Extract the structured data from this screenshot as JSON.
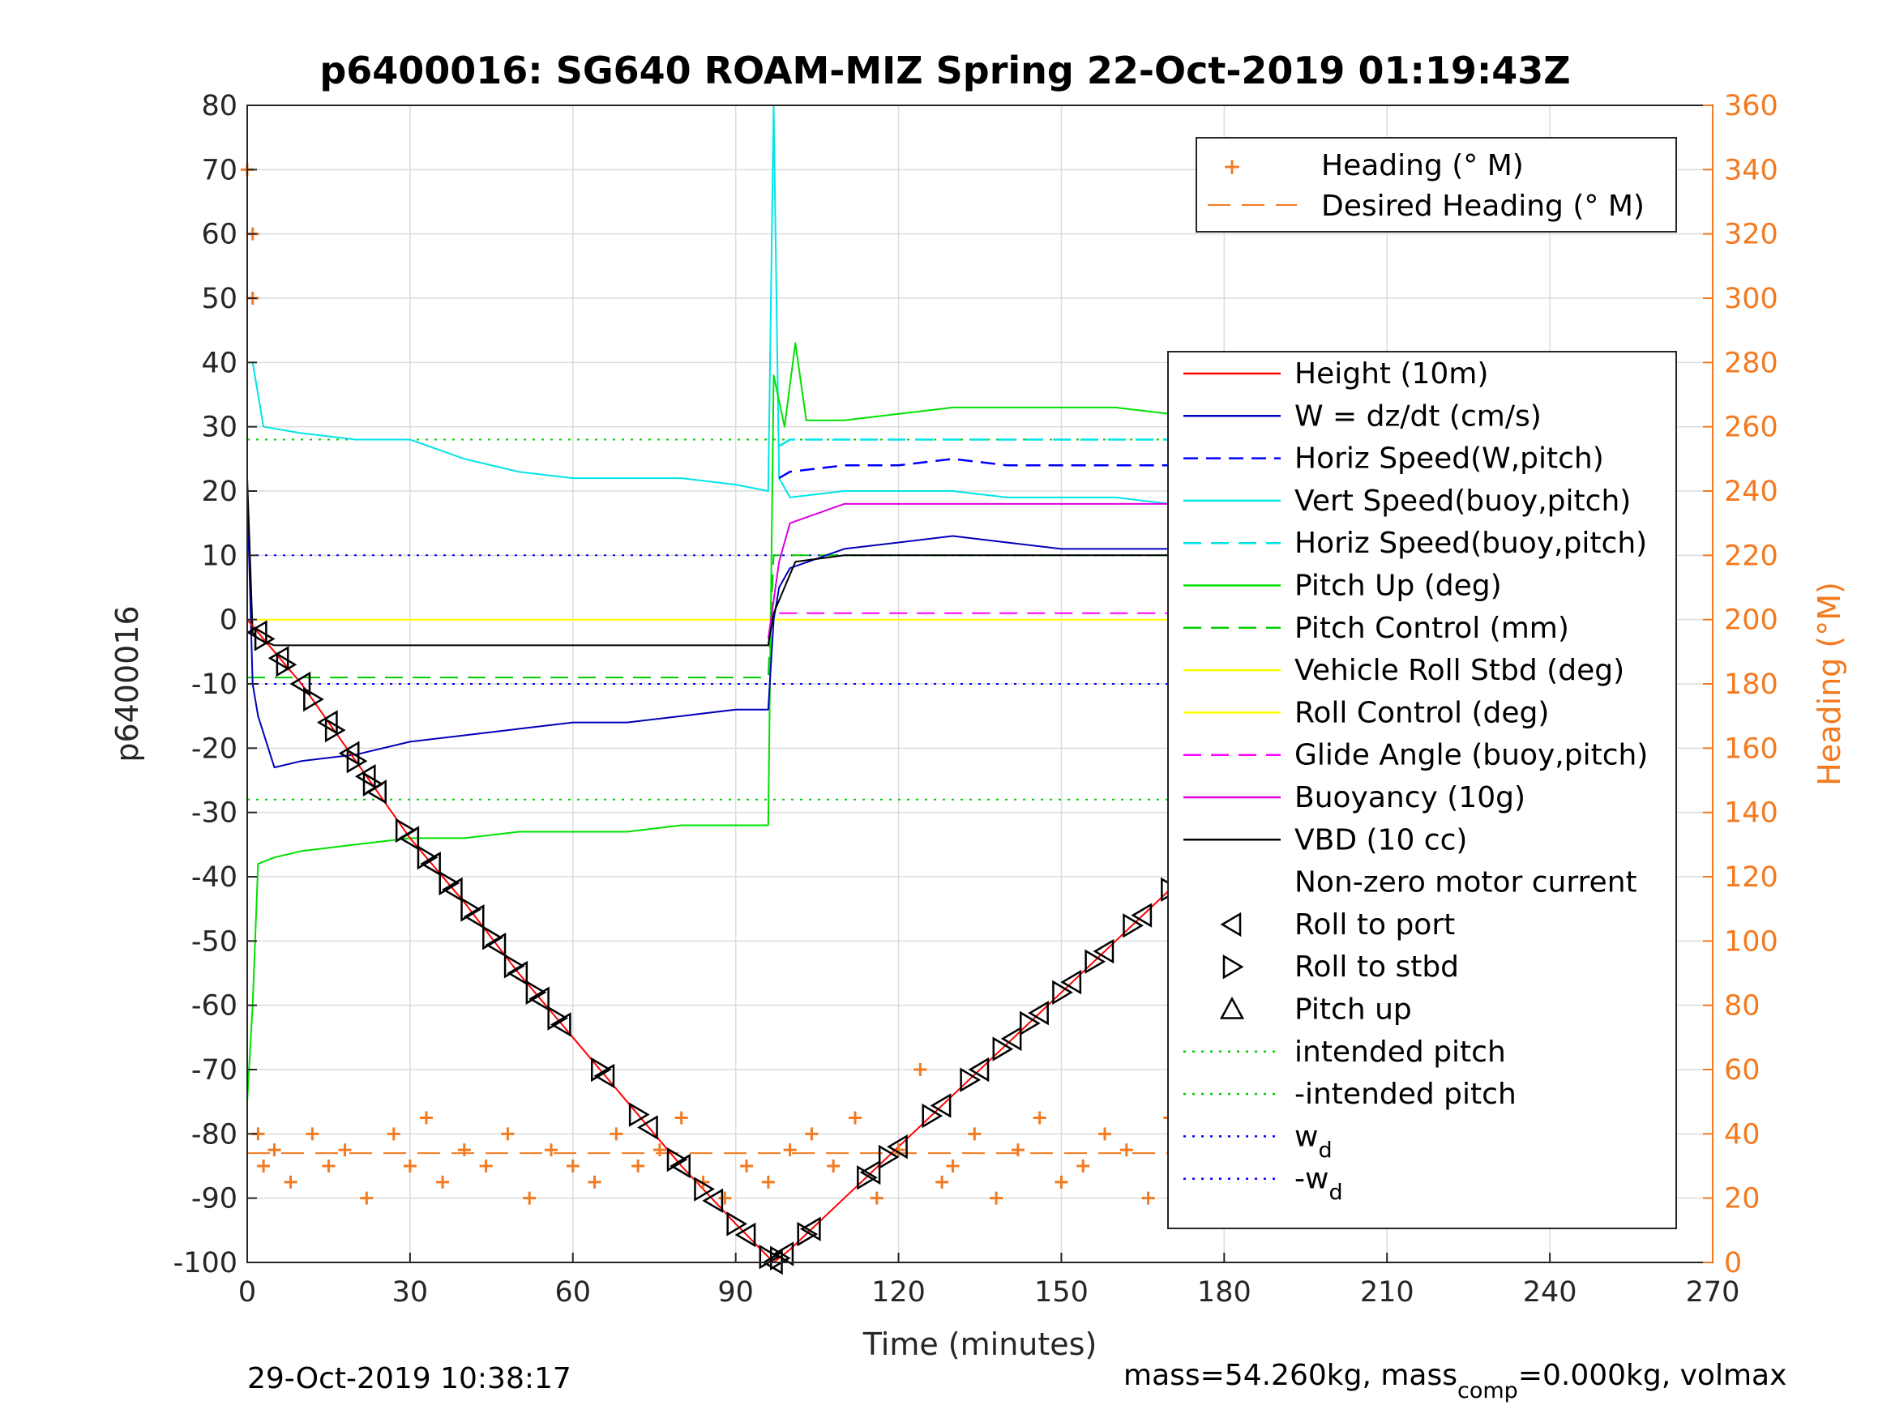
{
  "chart_data": {
    "type": "line",
    "title": "p6400016: SG640 ROAM-MIZ Spring 22-Oct-2019 01:19:43Z",
    "xlabel": "Time (minutes)",
    "ylabel": "p6400016",
    "y2label": "Heading (°M)",
    "xlim": [
      0,
      270
    ],
    "ylim": [
      -100,
      80
    ],
    "y2lim": [
      0,
      360
    ],
    "xticks": [
      "0",
      "30",
      "60",
      "90",
      "120",
      "150",
      "180",
      "210",
      "240",
      "270"
    ],
    "yticks": [
      "80",
      "70",
      "60",
      "50",
      "40",
      "30",
      "20",
      "10",
      "0",
      "-10",
      "-20",
      "-30",
      "-40",
      "-50",
      "-60",
      "-70",
      "-80",
      "-90",
      "-100"
    ],
    "y2ticks": [
      "360",
      "340",
      "320",
      "300",
      "280",
      "260",
      "240",
      "220",
      "200",
      "180",
      "160",
      "140",
      "120",
      "100",
      "80",
      "60",
      "40",
      "20",
      "0"
    ],
    "grid": true,
    "footer_left": "29-Oct-2019 10:38:17",
    "footer_right_parts": [
      "mass=54.260kg, mass",
      "comp",
      "=0.000kg, volmax"
    ],
    "legend_top": {
      "placement": "top-right",
      "entries": [
        "Heading (° M)",
        "Desired Heading (° M)"
      ]
    },
    "legend_main": {
      "placement": "right",
      "entries": [
        "Height (10m)",
        "W = dz/dt (cm/s)",
        "Horiz Speed(W,pitch)",
        "Vert Speed(buoy,pitch)",
        "Horiz Speed(buoy,pitch)",
        "Pitch Up (deg)",
        "Pitch Control (mm)",
        "Vehicle Roll Stbd (deg)",
        "Roll Control (deg)",
        "Glide Angle (buoy,pitch)",
        "Buoyancy (10g)",
        "VBD (10 cc)",
        "Non-zero motor current",
        "Roll to port",
        "Roll to stbd",
        "Pitch up",
        "intended pitch",
        "-intended pitch",
        "w",
        "-w"
      ],
      "sub_d": "d"
    },
    "colors": {
      "height": "#ff0000",
      "w": "#0000bb",
      "horiz_w": "#0000ff",
      "vert_buoy": "#00e5e5",
      "pitch_up": "#00e000",
      "roll": "#ffff00",
      "glide": "#ff00ff",
      "buoyancy": "#dd00dd",
      "vbd": "#000000",
      "heading": "#f47a20",
      "intended": "#00cc00",
      "wd": "#0000ff"
    },
    "series": [
      {
        "name": "Height (10m)",
        "x": [
          0,
          10,
          20,
          30,
          40,
          50,
          60,
          70,
          80,
          90,
          97,
          100,
          110,
          120,
          130,
          140,
          150,
          160,
          170,
          180,
          190,
          200,
          210,
          220,
          230,
          240,
          247
        ],
        "y": [
          0,
          -10,
          -22,
          -34,
          -44,
          -55,
          -65,
          -75,
          -85,
          -94,
          -100,
          -98,
          -90,
          -82,
          -74,
          -66,
          -58,
          -50,
          -42,
          -34,
          -26,
          -18,
          -12,
          -6,
          -3,
          -1,
          0
        ]
      },
      {
        "name": "W = dz/dt (cm/s)",
        "x": [
          0,
          1,
          2,
          5,
          10,
          20,
          30,
          40,
          50,
          60,
          70,
          80,
          90,
          96,
          97,
          98,
          100,
          110,
          120,
          130,
          140,
          150,
          160,
          170,
          180,
          190,
          200,
          210,
          220,
          230,
          240,
          246
        ],
        "y": [
          20,
          -10,
          -15,
          -23,
          -22,
          -21,
          -19,
          -18,
          -17,
          -16,
          -16,
          -15,
          -14,
          -14,
          0,
          5,
          8,
          11,
          12,
          13,
          12,
          11,
          11,
          11,
          10,
          11,
          11,
          12,
          12,
          12,
          13,
          12
        ]
      },
      {
        "name": "Horiz Speed(W,pitch)",
        "x": [
          98,
          100,
          110,
          120,
          130,
          140,
          150,
          160,
          170,
          180,
          190,
          200,
          210,
          220,
          230,
          240,
          246
        ],
        "y": [
          22,
          23,
          24,
          24,
          25,
          24,
          24,
          24,
          24,
          23,
          23,
          23,
          22,
          22,
          22,
          23,
          22
        ]
      },
      {
        "name": "Vert Speed(buoy,pitch)",
        "x": [
          1,
          3,
          10,
          20,
          30,
          40,
          50,
          60,
          70,
          80,
          90,
          96,
          97,
          98,
          100,
          110,
          120,
          130,
          140,
          150,
          160,
          170,
          180,
          190,
          200,
          210,
          220,
          230,
          240,
          246
        ],
        "y": [
          40,
          30,
          29,
          28,
          28,
          25,
          23,
          22,
          22,
          22,
          21,
          20,
          80,
          22,
          19,
          20,
          20,
          20,
          19,
          19,
          19,
          18,
          18,
          17,
          17,
          16,
          16,
          16,
          15,
          15
        ]
      },
      {
        "name": "Horiz Speed(buoy,pitch)",
        "x": [
          98,
          100,
          120,
          140,
          160,
          180,
          200,
          220,
          240,
          246
        ],
        "y": [
          27,
          28,
          28,
          28,
          28,
          28,
          28,
          28,
          28,
          28
        ]
      },
      {
        "name": "Pitch Up (deg)",
        "x": [
          0,
          1,
          2,
          5,
          10,
          20,
          30,
          40,
          50,
          60,
          70,
          80,
          90,
          96,
          97,
          99,
          101,
          103,
          110,
          120,
          130,
          140,
          150,
          160,
          170,
          180,
          190,
          200,
          210,
          220,
          230,
          240,
          246
        ],
        "y": [
          -75,
          -60,
          -38,
          -37,
          -36,
          -35,
          -34,
          -34,
          -33,
          -33,
          -33,
          -32,
          -32,
          -32,
          38,
          30,
          43,
          31,
          31,
          32,
          33,
          33,
          33,
          33,
          32,
          32,
          32,
          32,
          32,
          31,
          32,
          32,
          31
        ]
      },
      {
        "name": "Pitch Control (mm)",
        "x": [
          0,
          96,
          97,
          246
        ],
        "y": [
          -9,
          -9,
          10,
          10
        ]
      },
      {
        "name": "Roll Control (deg)",
        "x": [
          0,
          20,
          40,
          60,
          80,
          96,
          98,
          120,
          140,
          160,
          180,
          200,
          220,
          240,
          246
        ],
        "y": [
          0,
          0,
          0,
          0,
          0,
          0,
          0,
          0,
          0,
          0,
          0,
          0,
          0,
          0,
          0
        ]
      },
      {
        "name": "Glide Angle (buoy,pitch)",
        "x": [
          98,
          246
        ],
        "y": [
          1,
          1
        ]
      },
      {
        "name": "Buoyancy (10g)",
        "x": [
          96,
          98,
          100,
          110,
          120,
          140,
          160,
          180,
          200,
          220,
          240,
          246
        ],
        "y": [
          -3,
          9,
          15,
          18,
          18,
          18,
          18,
          18,
          18,
          19,
          18,
          18
        ]
      },
      {
        "name": "VBD (10 cc)",
        "x": [
          0,
          1,
          2,
          5,
          30,
          60,
          90,
          96,
          97,
          99,
          101,
          110,
          150,
          180,
          200,
          215,
          230,
          246
        ],
        "y": [
          22,
          -2,
          -3,
          -4,
          -4,
          -4,
          -4,
          -4,
          1,
          5,
          9,
          10,
          10,
          10,
          10,
          13,
          14,
          15
        ]
      },
      {
        "name": "intended pitch",
        "x": [
          0,
          246
        ],
        "y": [
          28,
          28
        ]
      },
      {
        "name": "-intended pitch",
        "x": [
          0,
          246
        ],
        "y": [
          -28,
          -28
        ]
      },
      {
        "name": "w_d",
        "x": [
          0,
          246
        ],
        "y": [
          10,
          10
        ]
      },
      {
        "name": "-w_d",
        "x": [
          0,
          246
        ],
        "y": [
          -10,
          -10
        ]
      },
      {
        "name": "Heading (° M)",
        "y_axis": "right",
        "x": [
          0,
          1,
          1,
          2,
          3,
          5,
          8,
          12,
          15,
          18,
          22,
          27,
          30,
          33,
          36,
          40,
          44,
          48,
          52,
          56,
          60,
          64,
          68,
          72,
          76,
          80,
          84,
          88,
          92,
          96,
          100,
          104,
          108,
          112,
          116,
          120,
          124,
          128,
          130,
          134,
          138,
          142,
          146,
          150,
          154,
          158,
          162,
          166,
          170,
          174,
          178,
          182,
          186,
          190,
          194,
          198,
          202,
          206,
          210,
          214,
          218,
          222,
          226,
          230,
          234,
          238,
          242,
          246
        ],
        "y": [
          340,
          320,
          300,
          40,
          30,
          35,
          25,
          40,
          30,
          35,
          20,
          40,
          30,
          45,
          25,
          35,
          30,
          40,
          20,
          35,
          30,
          25,
          40,
          30,
          35,
          45,
          25,
          20,
          30,
          25,
          35,
          40,
          30,
          45,
          20,
          35,
          60,
          25,
          30,
          40,
          20,
          35,
          45,
          25,
          30,
          40,
          35,
          20,
          45,
          30,
          40,
          25,
          50,
          30,
          40,
          20,
          35,
          45,
          25,
          30,
          40,
          20,
          35,
          45,
          30,
          25,
          40,
          35
        ]
      },
      {
        "name": "Desired Heading (° M)",
        "y_axis": "right",
        "x": [
          0,
          246
        ],
        "y": [
          34,
          34
        ]
      }
    ],
    "markers": {
      "roll_to_port_x": [
        2,
        6,
        10,
        15,
        19,
        22,
        24,
        30,
        34,
        38,
        42,
        46,
        50,
        54,
        58,
        66,
        74,
        80,
        86,
        92,
        97,
        99,
        104,
        115,
        120,
        128,
        135,
        141,
        146,
        152,
        158,
        165,
        172,
        178,
        184,
        190,
        196,
        202,
        208,
        214,
        220,
        226,
        232,
        238,
        244
      ],
      "roll_to_stbd_x": [
        3,
        7,
        12,
        16,
        20,
        23,
        29,
        33,
        37,
        41,
        45,
        49,
        53,
        57,
        65,
        72,
        79,
        84,
        90,
        96,
        98,
        103,
        114,
        118,
        126,
        133,
        139,
        144,
        150,
        156,
        163,
        170,
        176,
        182,
        188,
        194,
        200,
        206,
        212,
        218,
        224,
        230,
        236,
        242,
        246
      ]
    }
  }
}
